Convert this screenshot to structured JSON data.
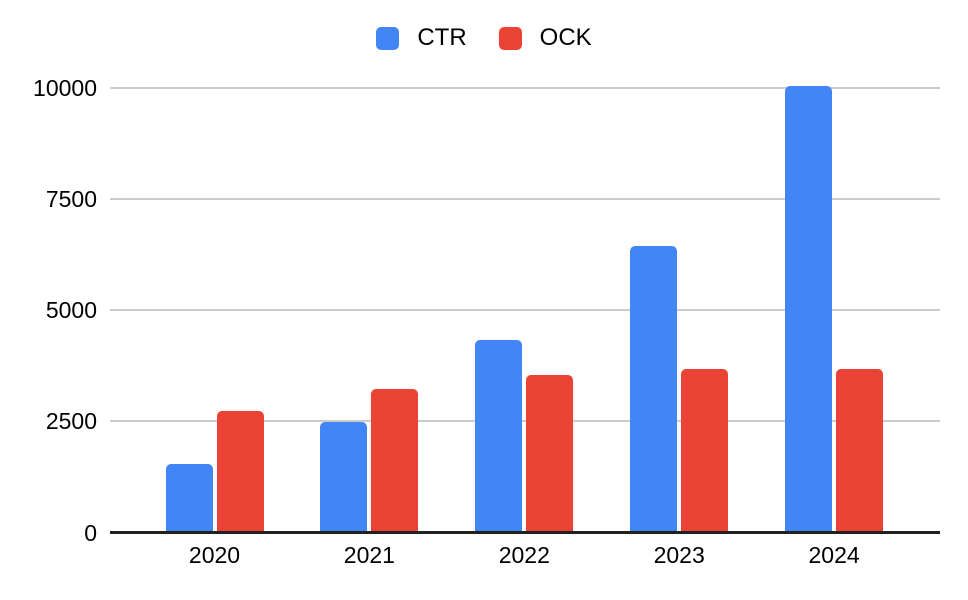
{
  "chart_data": {
    "type": "bar",
    "title": "",
    "xlabel": "",
    "ylabel": "",
    "categories": [
      "2020",
      "2021",
      "2022",
      "2023",
      "2024"
    ],
    "series": [
      {
        "name": "CTR",
        "color": "#4285F4",
        "values": [
          1500,
          2450,
          4300,
          6400,
          10000
        ]
      },
      {
        "name": "OCK",
        "color": "#EA4335",
        "values": [
          2700,
          3200,
          3500,
          3650,
          3650
        ]
      }
    ],
    "yticks": [
      0,
      2500,
      5000,
      7500,
      10000
    ],
    "ylim": [
      0,
      10000
    ],
    "legend_position": "top-center",
    "grid": "horizontal",
    "grid_color": "#cccccc",
    "axis_color": "#212121",
    "text_color": "#000000",
    "background_color": "#ffffff"
  }
}
